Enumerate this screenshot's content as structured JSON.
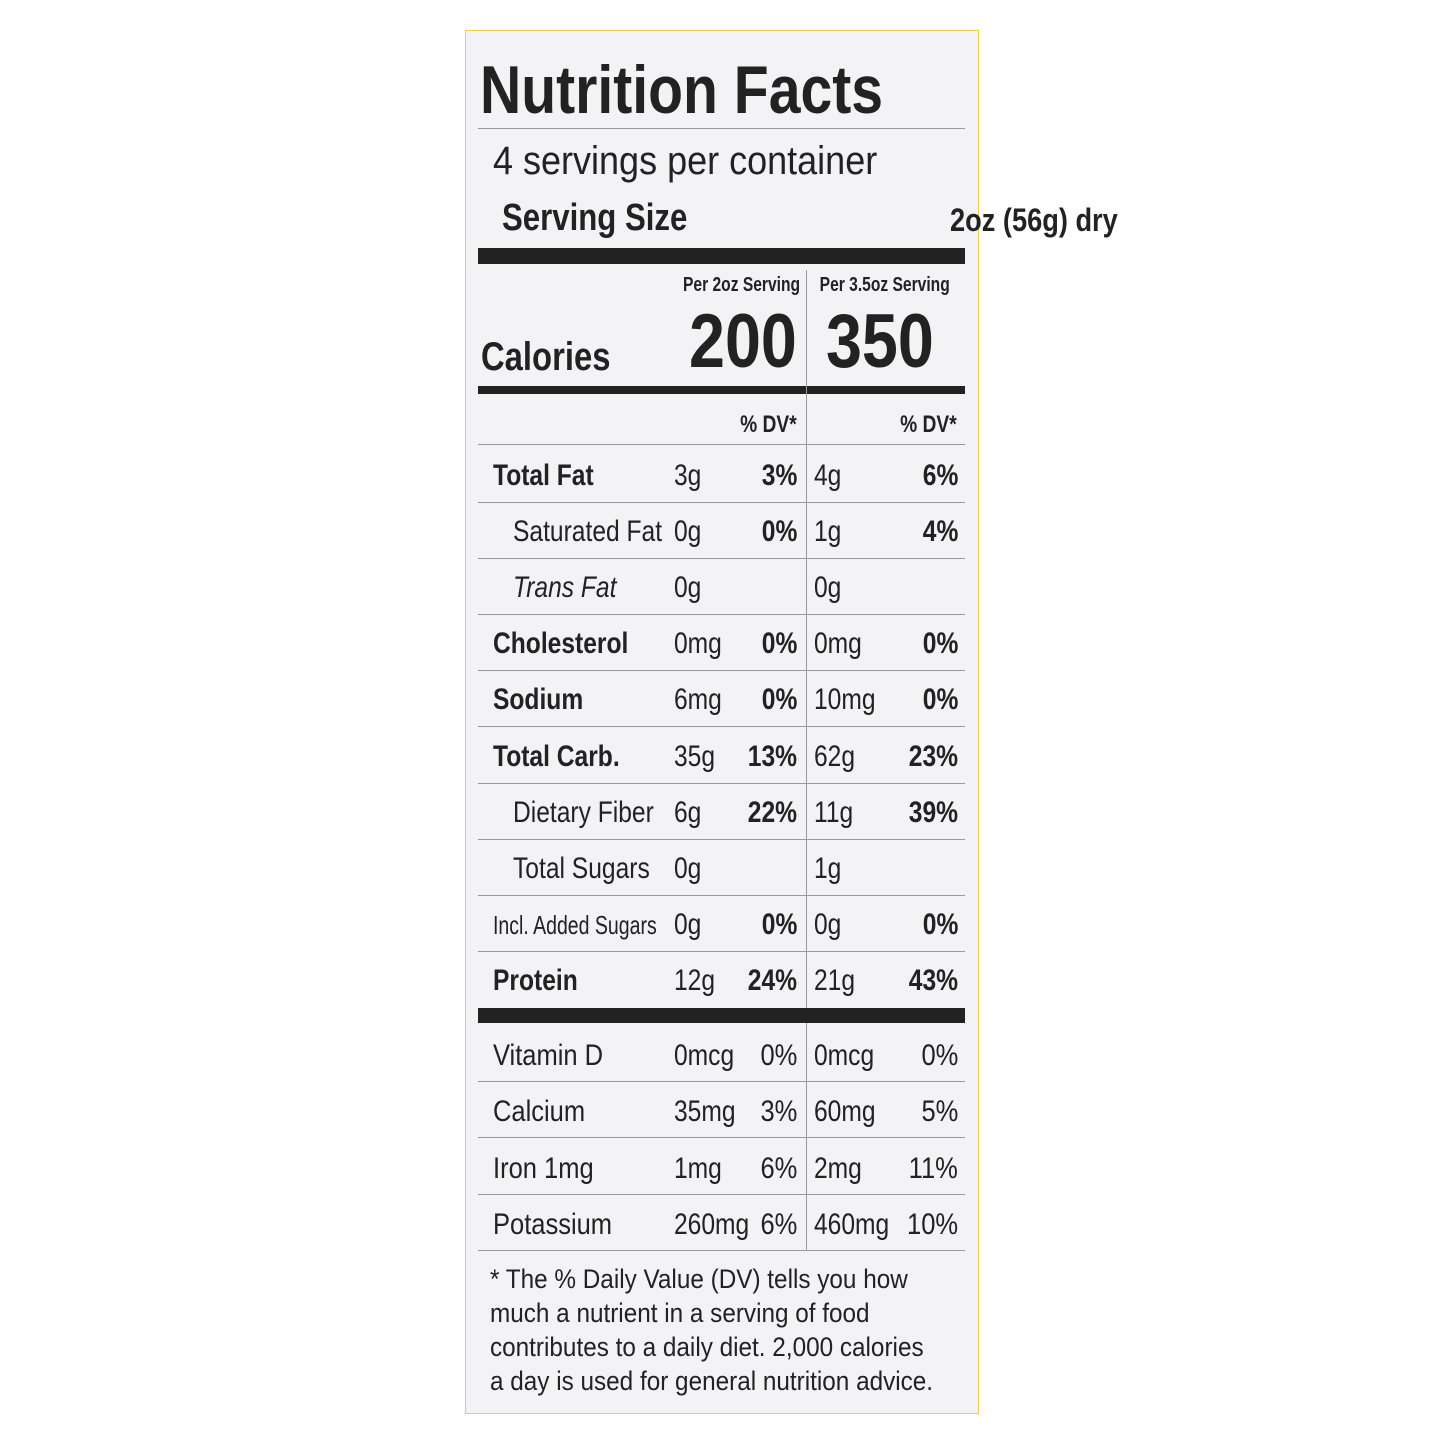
{
  "title": "Nutrition Facts",
  "servings": "4 servings per container",
  "serving_size": {
    "label": "Serving Size",
    "value": "2oz (56g) dry"
  },
  "columns": [
    {
      "header": "Per 2oz Serving",
      "calories": "200",
      "dv_header": "% DV*"
    },
    {
      "header": "Per 3.5oz Serving",
      "calories": "350",
      "dv_header": "% DV*"
    }
  ],
  "calories_label": "Calories",
  "nutrients": [
    {
      "name": "Total Fat",
      "a1": "3g",
      "d1": "3%",
      "a2": "4g",
      "d2": "6%"
    },
    {
      "name": "Saturated Fat",
      "a1": "0g",
      "d1": "0%",
      "a2": "1g",
      "d2": "4%"
    },
    {
      "name": "Trans Fat",
      "a1": "0g",
      "a2": "0g"
    },
    {
      "name": "Cholesterol",
      "a1": "0mg",
      "d1": "0%",
      "a2": "0mg",
      "d2": "0%"
    },
    {
      "name": "Sodium",
      "a1": "6mg",
      "d1": "0%",
      "a2": "10mg",
      "d2": "0%"
    },
    {
      "name": "Total Carb.",
      "a1": "35g",
      "d1": "13%",
      "a2": "62g",
      "d2": "23%"
    },
    {
      "name": "Dietary Fiber",
      "a1": "6g",
      "d1": "22%",
      "a2": "11g",
      "d2": "39%"
    },
    {
      "name": "Total Sugars",
      "a1": "0g",
      "a2": "1g"
    },
    {
      "name": "Incl. Added Sugars",
      "a1": "0g",
      "d1": "0%",
      "a2": "0g",
      "d2": "0%"
    },
    {
      "name": "Protein",
      "a1": "12g",
      "d1": "24%",
      "a2": "21g",
      "d2": "43%"
    }
  ],
  "vitamins": [
    {
      "name": "Vitamin D",
      "a1": "0mcg",
      "d1": "0%",
      "a2": "0mcg",
      "d2": "0%"
    },
    {
      "name": "Calcium",
      "a1": "35mg",
      "d1": "3%",
      "a2": "60mg",
      "d2": "5%"
    },
    {
      "name": "Iron 1mg",
      "a1": "1mg",
      "d1": "6%",
      "a2": "2mg",
      "d2": "11%"
    },
    {
      "name": "Potassium",
      "a1": "260mg",
      "d1": "6%",
      "a2": "460mg",
      "d2": "10%"
    }
  ],
  "footnote": {
    "lines": [
      "* The % Daily Value (DV) tells you how",
      "much a nutrient in a serving of food",
      "contributes to a daily diet. 2,000 calories",
      "a day is used for general nutrition advice."
    ]
  }
}
